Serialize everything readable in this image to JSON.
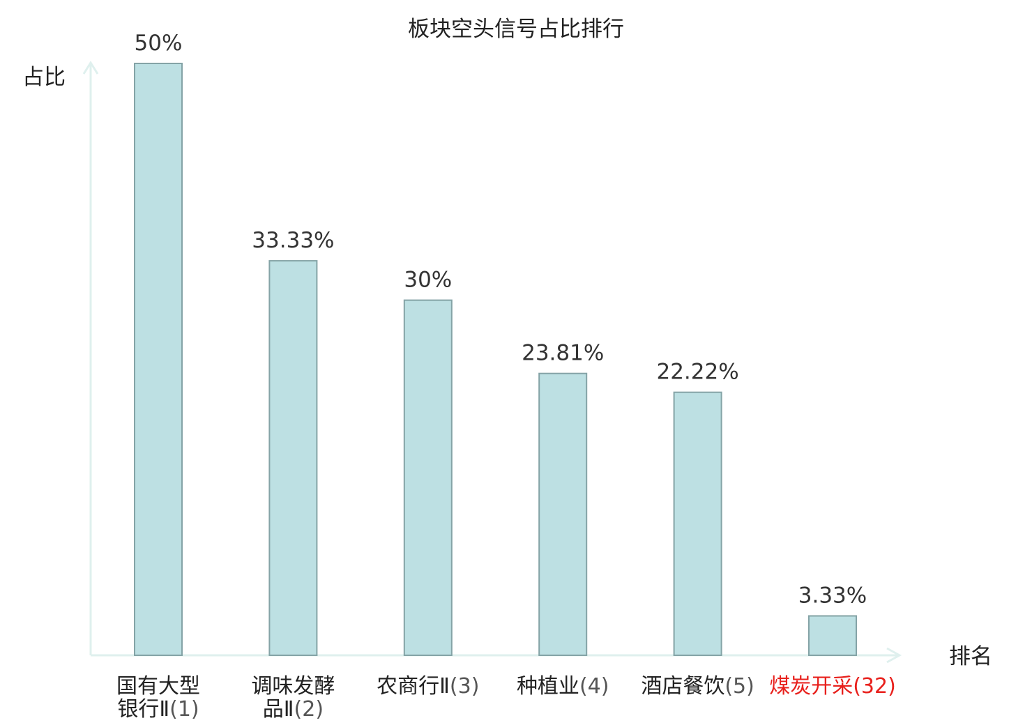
{
  "chart_data": {
    "type": "bar",
    "title": "板块空头信号占比排行",
    "xlabel": "排名",
    "ylabel": "占比",
    "ylim": [
      0,
      50
    ],
    "grid": false,
    "legend": "none",
    "categories": [
      {
        "name_lines": [
          "国有大型",
          "银行Ⅱ"
        ],
        "rank": "(1)",
        "highlight": false
      },
      {
        "name_lines": [
          "调味发酵",
          "品Ⅱ"
        ],
        "rank": "(2)",
        "highlight": false
      },
      {
        "name_lines": [
          "农商行Ⅱ"
        ],
        "rank": "(3)",
        "highlight": false
      },
      {
        "name_lines": [
          "种植业"
        ],
        "rank": "(4)",
        "highlight": false
      },
      {
        "name_lines": [
          "酒店餐饮"
        ],
        "rank": "(5)",
        "highlight": false
      },
      {
        "name_lines": [
          "煤炭开采"
        ],
        "rank": "(32)",
        "highlight": true
      }
    ],
    "values": [
      50,
      33.33,
      30,
      23.81,
      22.22,
      3.33
    ],
    "value_labels": [
      "50%",
      "33.33%",
      "30%",
      "23.81%",
      "22.22%",
      "3.33%"
    ]
  },
  "colors": {
    "bar_fill": "#bde0e3",
    "bar_stroke": "#84a3a6",
    "axis": "#dff0ee",
    "highlight_text": "#e8201c",
    "text": "#222222"
  }
}
